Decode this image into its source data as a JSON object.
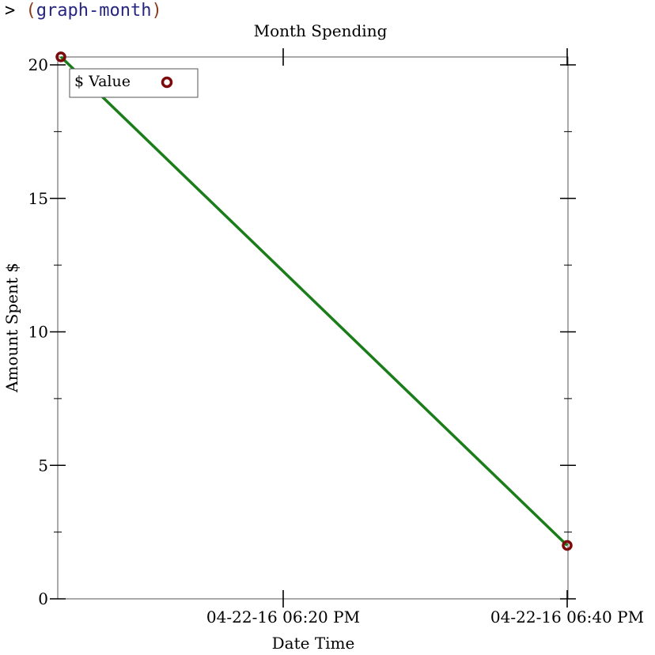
{
  "repl": {
    "prompt": ">",
    "open_paren": "(",
    "command": "graph-month",
    "close_paren": ")"
  },
  "chart_data": {
    "type": "line",
    "title": "Month Spending",
    "xlabel": "Date Time",
    "ylabel": "Amount Spent $",
    "x_ticks": [
      "04-22-16 06:20 PM",
      "04-22-16 06:40 PM"
    ],
    "ylim": [
      0,
      20
    ],
    "y_ticks": [
      0,
      5,
      10,
      15,
      20
    ],
    "series": [
      {
        "name": "$ Value",
        "x": [
          "04-22-16 06:06 PM",
          "04-22-16 06:40 PM"
        ],
        "y": [
          20.3,
          2
        ]
      }
    ],
    "line_color": "#1a7d1a",
    "marker_color": "#7d0a0a",
    "legend_position": "top-left",
    "grid": false
  }
}
